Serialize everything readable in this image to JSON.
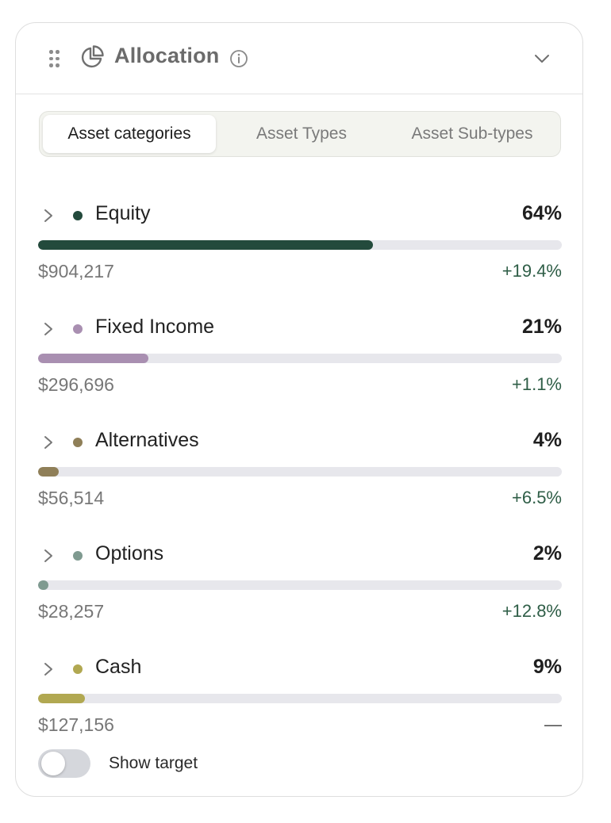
{
  "header": {
    "title": "Allocation",
    "icons": {
      "drag": "drag-handle-icon",
      "pie": "pie-chart-icon",
      "info": "info-icon",
      "collapse": "chevron-down-icon"
    }
  },
  "tabs": [
    {
      "label": "Asset categories",
      "active": true
    },
    {
      "label": "Asset Types",
      "active": false
    },
    {
      "label": "Asset Sub-types",
      "active": false
    }
  ],
  "categories": [
    {
      "name": "Equity",
      "percent_label": "64%",
      "share": 64,
      "value": "$904,217",
      "change": "+19.4%",
      "color": "#234a3c"
    },
    {
      "name": "Fixed Income",
      "percent_label": "21%",
      "share": 21,
      "value": "$296,696",
      "change": "+1.1%",
      "color": "#a98fb1"
    },
    {
      "name": "Alternatives",
      "percent_label": "4%",
      "share": 4,
      "value": "$56,514",
      "change": "+6.5%",
      "color": "#8f7f58"
    },
    {
      "name": "Options",
      "percent_label": "2%",
      "share": 2,
      "value": "$28,257",
      "change": "+12.8%",
      "color": "#7f9a90"
    },
    {
      "name": "Cash",
      "percent_label": "9%",
      "share": 9,
      "value": "$127,156",
      "change": "—",
      "color": "#b1a851"
    }
  ],
  "show_target": {
    "label": "Show target",
    "on": false
  }
}
